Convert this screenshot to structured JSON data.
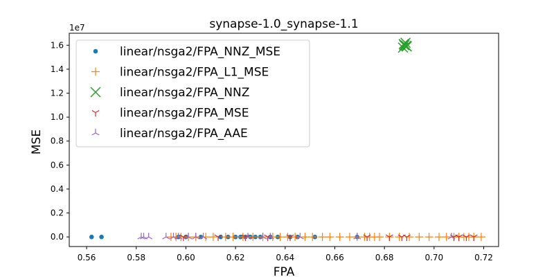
{
  "chart_data": {
    "type": "scatter",
    "title": "synapse-1.0_synapse-1.1",
    "xlabel": "FPA",
    "ylabel": "MSE",
    "y_offset_label": "1e7",
    "xlim": [
      0.553,
      0.726
    ],
    "ylim": [
      -800000,
      17000000
    ],
    "x_ticks": [
      0.56,
      0.58,
      0.6,
      0.62,
      0.64,
      0.66,
      0.68,
      0.7,
      0.72
    ],
    "x_tick_labels": [
      "0.56",
      "0.58",
      "0.60",
      "0.62",
      "0.64",
      "0.66",
      "0.68",
      "0.70",
      "0.72"
    ],
    "y_ticks": [
      0,
      2000000,
      4000000,
      6000000,
      8000000,
      10000000,
      12000000,
      14000000,
      16000000
    ],
    "y_tick_labels": [
      "0.0",
      "0.2",
      "0.4",
      "0.6",
      "0.8",
      "1.0",
      "1.2",
      "1.4",
      "1.6"
    ],
    "legend_position": "top-left",
    "series": [
      {
        "name": "linear/nsga2/FPA_NNZ_MSE",
        "marker": "dot",
        "color": "#1f77b4",
        "x": [
          0.562,
          0.566,
          0.597,
          0.6,
          0.606,
          0.614,
          0.617,
          0.62,
          0.622,
          0.624,
          0.626,
          0.628,
          0.63,
          0.634,
          0.637,
          0.642,
          0.645,
          0.652,
          0.669
        ],
        "y": [
          0,
          0,
          0,
          0,
          0,
          0,
          0,
          0,
          0,
          0,
          0,
          0,
          0,
          0,
          0,
          0,
          0,
          0,
          0
        ]
      },
      {
        "name": "linear/nsga2/FPA_L1_MSE",
        "marker": "plus",
        "color": "#ff7f0e",
        "x": [
          0.594,
          0.596,
          0.598,
          0.601,
          0.604,
          0.608,
          0.611,
          0.616,
          0.619,
          0.623,
          0.627,
          0.631,
          0.635,
          0.638,
          0.641,
          0.644,
          0.648,
          0.651,
          0.655,
          0.658,
          0.662,
          0.666,
          0.669,
          0.672,
          0.674,
          0.676,
          0.678,
          0.682,
          0.686,
          0.69,
          0.694,
          0.698,
          0.702,
          0.705,
          0.708,
          0.71,
          0.712,
          0.714,
          0.716,
          0.719
        ],
        "y": [
          0,
          0,
          0,
          0,
          0,
          0,
          0,
          0,
          0,
          0,
          0,
          0,
          0,
          0,
          0,
          0,
          0,
          0,
          0,
          0,
          0,
          0,
          0,
          0,
          0,
          0,
          0,
          0,
          0,
          0,
          0,
          0,
          0,
          0,
          0,
          0,
          0,
          0,
          0,
          0
        ]
      },
      {
        "name": "linear/nsga2/FPA_NNZ",
        "marker": "x",
        "color": "#2ca02c",
        "x": [
          0.6875,
          0.688,
          0.6885,
          0.689,
          0.6878,
          0.6888
        ],
        "y": [
          15800000,
          16000000,
          16200000,
          15900000,
          16100000,
          15950000
        ]
      },
      {
        "name": "linear/nsga2/FPA_MSE",
        "marker": "tri_down",
        "color": "#d62728",
        "x": [
          0.599,
          0.613,
          0.624,
          0.633,
          0.642,
          0.673,
          0.682,
          0.687,
          0.689,
          0.708,
          0.71,
          0.713,
          0.716
        ],
        "y": [
          0,
          0,
          0,
          0,
          0,
          0,
          0,
          0,
          0,
          0,
          0,
          0,
          0
        ]
      },
      {
        "name": "linear/nsga2/FPA_AAE",
        "marker": "tri_up",
        "color": "#9467bd",
        "x": [
          0.582,
          0.583,
          0.585,
          0.592,
          0.595,
          0.597,
          0.601,
          0.604,
          0.607,
          0.625,
          0.631,
          0.634,
          0.646,
          0.669,
          0.707
        ],
        "y": [
          0,
          0,
          0,
          0,
          0,
          0,
          0,
          0,
          0,
          0,
          0,
          0,
          0,
          0,
          0
        ]
      }
    ]
  }
}
